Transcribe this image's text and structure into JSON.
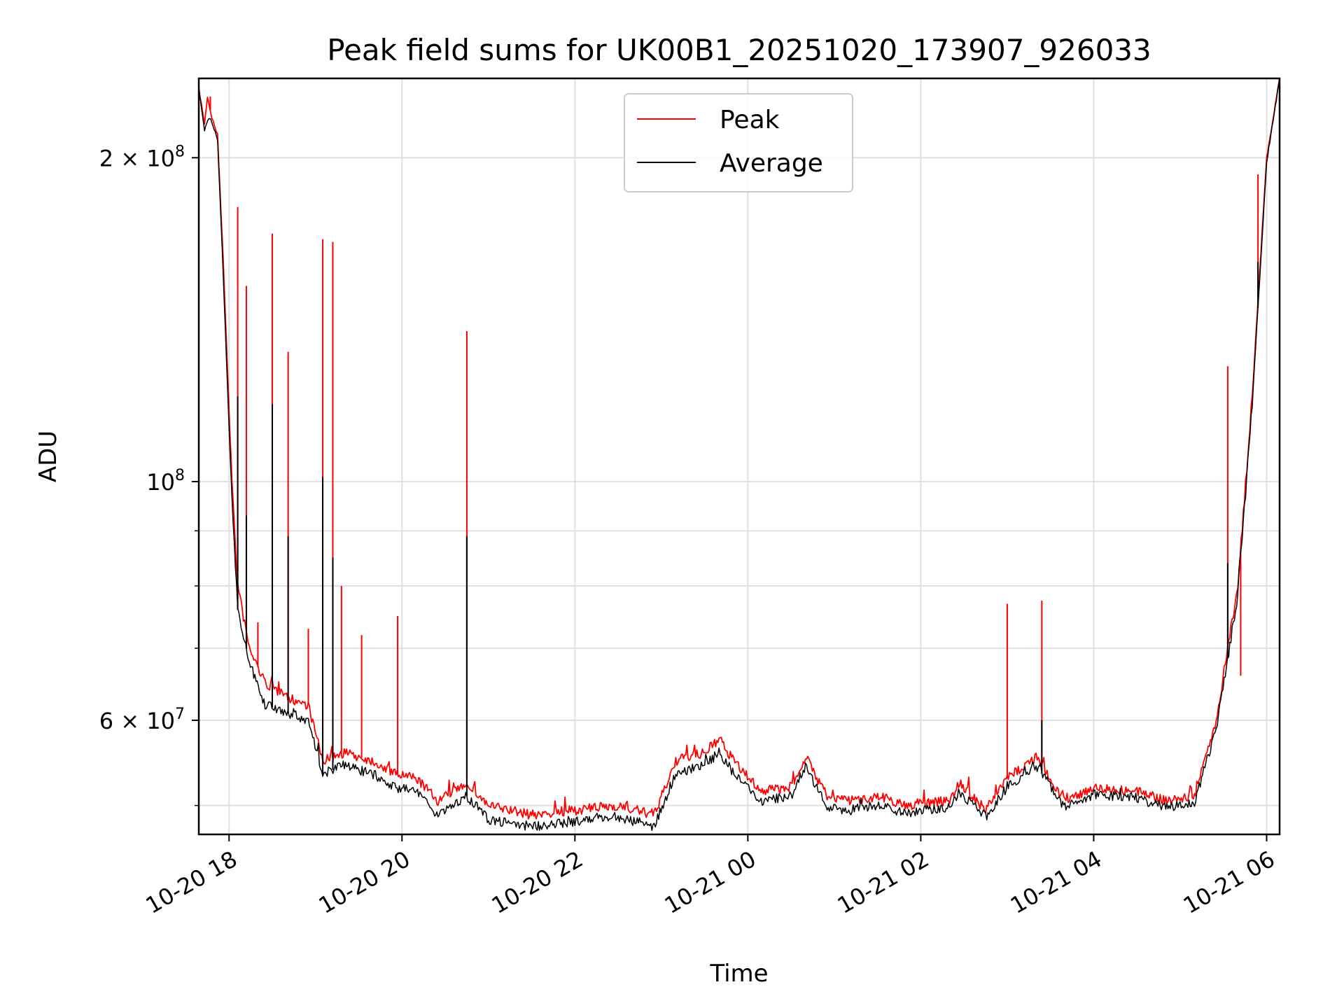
{
  "chart_data": {
    "type": "line",
    "title": "Peak field sums for UK00B1_20251020_173907_926033",
    "xlabel": "Time",
    "ylabel": "ADU",
    "y_scale": "log",
    "ylim": [
      47000000,
      237000000
    ],
    "xlim": [
      "2025-10-20 17:39",
      "2025-10-21 06:09"
    ],
    "grid": true,
    "legend_position": "top-center",
    "x_ticks": [
      {
        "t": "2025-10-20 18:00",
        "label": "10-20 18"
      },
      {
        "t": "2025-10-20 20:00",
        "label": "10-20 20"
      },
      {
        "t": "2025-10-20 22:00",
        "label": "10-20 22"
      },
      {
        "t": "2025-10-21 00:00",
        "label": "10-21 00"
      },
      {
        "t": "2025-10-21 02:00",
        "label": "10-21 02"
      },
      {
        "t": "2025-10-21 04:00",
        "label": "10-21 04"
      },
      {
        "t": "2025-10-21 06:00",
        "label": "10-21 06"
      }
    ],
    "y_major_ticks": [
      {
        "value": 200000000,
        "base": "2 × 10",
        "exp": "8"
      },
      {
        "value": 100000000,
        "base": "10",
        "exp": "8"
      },
      {
        "value": 60000000,
        "base": "6 × 10",
        "exp": "7"
      }
    ],
    "y_minor_ticks": [
      50000000,
      70000000,
      80000000,
      90000000
    ],
    "series": [
      {
        "name": "Peak",
        "color": "#ff0000",
        "points": [
          [
            "2025-10-20 17:39",
            232000000
          ],
          [
            "2025-10-20 17:43",
            215000000
          ],
          [
            "2025-10-20 17:45",
            228000000
          ],
          [
            "2025-10-20 17:48",
            218000000
          ],
          [
            "2025-10-20 17:52",
            210000000
          ],
          [
            "2025-10-20 17:56",
            160000000
          ],
          [
            "2025-10-20 18:02",
            100000000
          ],
          [
            "2025-10-20 18:06",
            80000000
          ],
          [
            "2025-10-20 18:14",
            70000000
          ],
          [
            "2025-10-20 18:25",
            65000000
          ],
          [
            "2025-10-20 18:40",
            63000000
          ],
          [
            "2025-10-20 18:55",
            62000000
          ],
          [
            "2025-10-20 19:05",
            55000000
          ],
          [
            "2025-10-20 19:20",
            56000000
          ],
          [
            "2025-10-20 19:40",
            55000000
          ],
          [
            "2025-10-20 19:55",
            53500000
          ],
          [
            "2025-10-20 20:10",
            53000000
          ],
          [
            "2025-10-20 20:25",
            50500000
          ],
          [
            "2025-10-20 20:45",
            52500000
          ],
          [
            "2025-10-20 21:00",
            50000000
          ],
          [
            "2025-10-20 21:30",
            49000000
          ],
          [
            "2025-10-20 22:00",
            49500000
          ],
          [
            "2025-10-20 22:30",
            50000000
          ],
          [
            "2025-10-20 22:55",
            49000000
          ],
          [
            "2025-10-20 23:10",
            55000000
          ],
          [
            "2025-10-20 23:30",
            56000000
          ],
          [
            "2025-10-20 23:40",
            57500000
          ],
          [
            "2025-10-20 23:55",
            54000000
          ],
          [
            "2025-10-21 00:10",
            51500000
          ],
          [
            "2025-10-21 00:30",
            52000000
          ],
          [
            "2025-10-21 00:40",
            55500000
          ],
          [
            "2025-10-21 00:55",
            51000000
          ],
          [
            "2025-10-21 01:10",
            50500000
          ],
          [
            "2025-10-21 01:30",
            51000000
          ],
          [
            "2025-10-21 01:50",
            50000000
          ],
          [
            "2025-10-21 02:20",
            50500000
          ],
          [
            "2025-10-21 02:27",
            52500000
          ],
          [
            "2025-10-21 02:45",
            49500000
          ],
          [
            "2025-10-21 03:00",
            53000000
          ],
          [
            "2025-10-21 03:20",
            55500000
          ],
          [
            "2025-10-21 03:40",
            50500000
          ],
          [
            "2025-10-21 04:00",
            52000000
          ],
          [
            "2025-10-21 04:30",
            51500000
          ],
          [
            "2025-10-21 04:50",
            50500000
          ],
          [
            "2025-10-21 05:10",
            51000000
          ],
          [
            "2025-10-21 05:25",
            60000000
          ],
          [
            "2025-10-21 05:40",
            80000000
          ],
          [
            "2025-10-21 05:50",
            120000000
          ],
          [
            "2025-10-21 06:00",
            200000000
          ],
          [
            "2025-10-21 06:09",
            237000000
          ]
        ],
        "spikes": [
          [
            "2025-10-20 17:47",
            228000000
          ],
          [
            "2025-10-20 18:06",
            180000000
          ],
          [
            "2025-10-20 18:12",
            152000000
          ],
          [
            "2025-10-20 18:20",
            74000000
          ],
          [
            "2025-10-20 18:30",
            170000000
          ],
          [
            "2025-10-20 18:41",
            132000000
          ],
          [
            "2025-10-20 18:55",
            73000000
          ],
          [
            "2025-10-20 19:05",
            168000000
          ],
          [
            "2025-10-20 19:12",
            167000000
          ],
          [
            "2025-10-20 19:18",
            80000000
          ],
          [
            "2025-10-20 19:32",
            72000000
          ],
          [
            "2025-10-20 19:57",
            75000000
          ],
          [
            "2025-10-20 20:45",
            138000000
          ],
          [
            "2025-10-21 03:00",
            77000000
          ],
          [
            "2025-10-21 03:24",
            77500000
          ],
          [
            "2025-10-21 05:33",
            128000000
          ],
          [
            "2025-10-21 05:42",
            66000000
          ],
          [
            "2025-10-21 05:54",
            193000000
          ]
        ]
      },
      {
        "name": "Average",
        "color": "#000000",
        "points": [
          [
            "2025-10-20 17:39",
            232000000
          ],
          [
            "2025-10-20 17:43",
            212000000
          ],
          [
            "2025-10-20 17:46",
            218000000
          ],
          [
            "2025-10-20 17:48",
            216000000
          ],
          [
            "2025-10-20 17:52",
            208000000
          ],
          [
            "2025-10-20 17:56",
            155000000
          ],
          [
            "2025-10-20 18:02",
            96000000
          ],
          [
            "2025-10-20 18:06",
            76000000
          ],
          [
            "2025-10-20 18:14",
            68000000
          ],
          [
            "2025-10-20 18:25",
            62000000
          ],
          [
            "2025-10-20 18:40",
            61000000
          ],
          [
            "2025-10-20 18:55",
            60000000
          ],
          [
            "2025-10-20 19:05",
            53500000
          ],
          [
            "2025-10-20 19:20",
            54500000
          ],
          [
            "2025-10-20 19:40",
            53500000
          ],
          [
            "2025-10-20 19:55",
            52000000
          ],
          [
            "2025-10-20 20:10",
            51500000
          ],
          [
            "2025-10-20 20:25",
            49000000
          ],
          [
            "2025-10-20 20:45",
            51000000
          ],
          [
            "2025-10-20 21:00",
            48500000
          ],
          [
            "2025-10-20 21:30",
            47800000
          ],
          [
            "2025-10-20 22:00",
            48200000
          ],
          [
            "2025-10-20 22:30",
            48800000
          ],
          [
            "2025-10-20 22:55",
            47800000
          ],
          [
            "2025-10-20 23:10",
            53500000
          ],
          [
            "2025-10-20 23:30",
            54500000
          ],
          [
            "2025-10-20 23:40",
            56000000
          ],
          [
            "2025-10-20 23:55",
            52500000
          ],
          [
            "2025-10-21 00:10",
            50500000
          ],
          [
            "2025-10-21 00:30",
            51000000
          ],
          [
            "2025-10-21 00:40",
            54500000
          ],
          [
            "2025-10-21 00:55",
            49800000
          ],
          [
            "2025-10-21 01:10",
            49500000
          ],
          [
            "2025-10-21 01:30",
            50000000
          ],
          [
            "2025-10-21 01:50",
            49200000
          ],
          [
            "2025-10-21 02:20",
            49800000
          ],
          [
            "2025-10-21 02:27",
            51500000
          ],
          [
            "2025-10-21 02:45",
            48800000
          ],
          [
            "2025-10-21 03:00",
            52000000
          ],
          [
            "2025-10-21 03:20",
            54500000
          ],
          [
            "2025-10-21 03:40",
            49800000
          ],
          [
            "2025-10-21 04:00",
            51200000
          ],
          [
            "2025-10-21 04:30",
            50800000
          ],
          [
            "2025-10-21 04:50",
            49800000
          ],
          [
            "2025-10-21 05:10",
            50300000
          ],
          [
            "2025-10-21 05:25",
            59000000
          ],
          [
            "2025-10-21 05:40",
            78000000
          ],
          [
            "2025-10-21 05:50",
            118000000
          ],
          [
            "2025-10-21 06:00",
            198000000
          ],
          [
            "2025-10-21 06:09",
            237000000
          ]
        ],
        "spikes": [
          [
            "2025-10-20 18:06",
            120000000
          ],
          [
            "2025-10-20 18:12",
            93000000
          ],
          [
            "2025-10-20 18:30",
            118000000
          ],
          [
            "2025-10-20 18:41",
            89000000
          ],
          [
            "2025-10-20 19:05",
            101000000
          ],
          [
            "2025-10-20 19:12",
            85000000
          ],
          [
            "2025-10-20 20:45",
            89000000
          ],
          [
            "2025-10-21 03:24",
            60000000
          ],
          [
            "2025-10-21 05:33",
            84000000
          ],
          [
            "2025-10-21 05:54",
            160000000
          ]
        ]
      }
    ]
  }
}
